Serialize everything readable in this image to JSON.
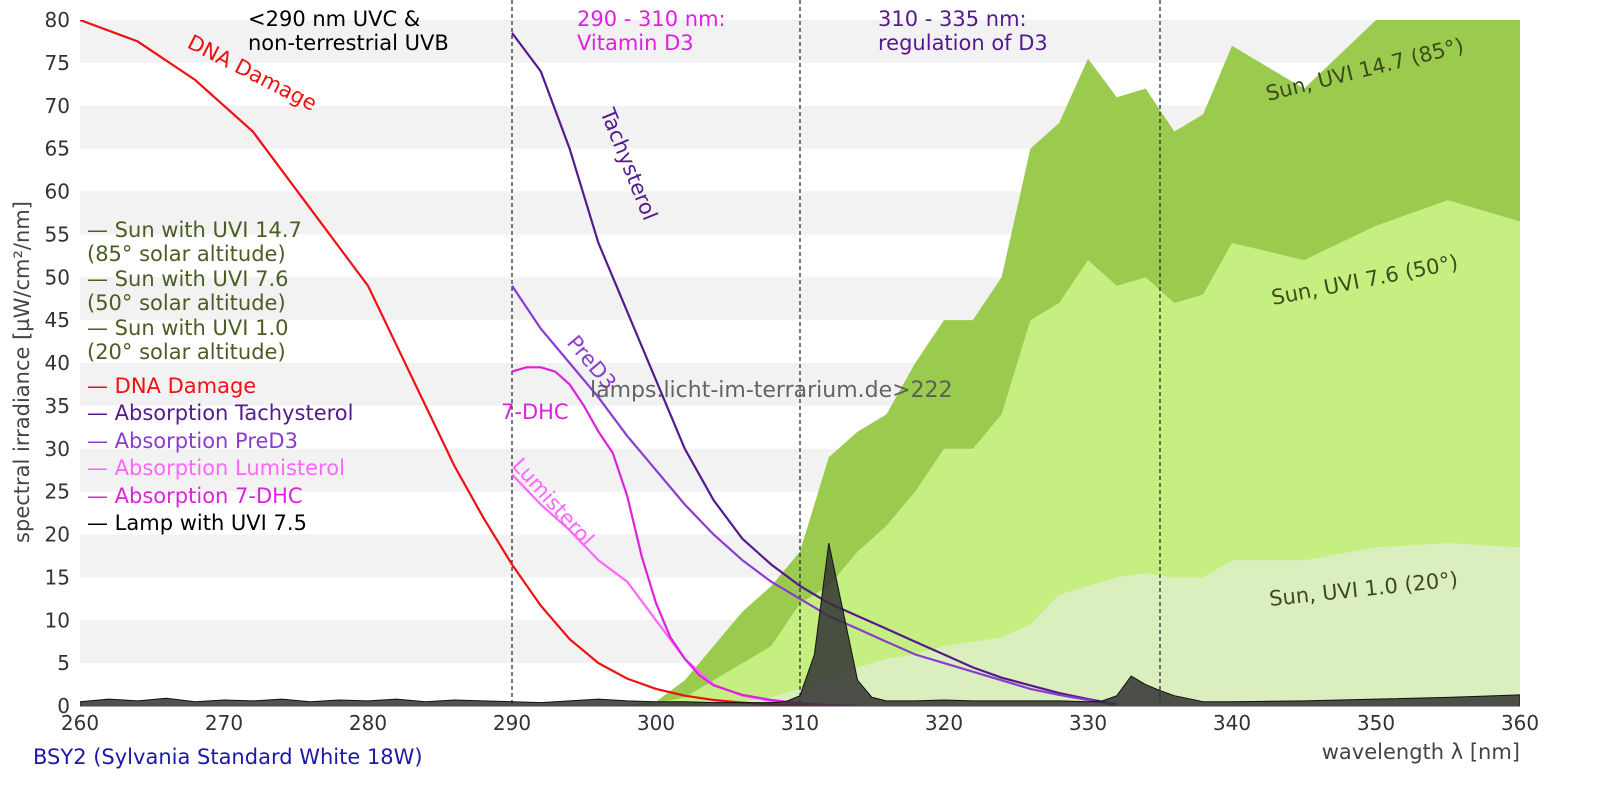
{
  "chart_data": {
    "type": "area",
    "xlabel": "wavelength λ [nm]",
    "ylabel": "spectral irradiance [µW/cm²/nm]",
    "xlim": [
      260,
      360
    ],
    "ylim": [
      0,
      80
    ],
    "x_ticks": [
      "260",
      "270",
      "280",
      "290",
      "300",
      "310",
      "320",
      "330",
      "340",
      "350",
      "360"
    ],
    "y_ticks": [
      "0",
      "5",
      "10",
      "15",
      "20",
      "25",
      "30",
      "35",
      "40",
      "45",
      "50",
      "55",
      "60",
      "65",
      "70",
      "75",
      "80"
    ],
    "grid": "horizontal bands",
    "region_lines": [
      290,
      310,
      335
    ],
    "regions": [
      {
        "lines": [
          "<290 nm UVC &",
          "non-terrestrial UVB"
        ],
        "color": "#000000"
      },
      {
        "lines": [
          "290 - 310 nm:",
          "Vitamin D3"
        ],
        "color": "#e01fe0"
      },
      {
        "lines": [
          "310 - 335 nm:",
          "regulation of D3"
        ],
        "color": "#55198f"
      }
    ],
    "legend": [
      {
        "lines": [
          "— Sun with UVI 14.7",
          "  (85° solar altitude)"
        ],
        "color": "#4b5e22"
      },
      {
        "lines": [
          "— Sun with UVI 7.6",
          "  (50° solar altitude)"
        ],
        "color": "#4b5e22"
      },
      {
        "lines": [
          "— Sun with UVI 1.0",
          "  (20° solar altitude)"
        ],
        "color": "#4b5e22"
      },
      {
        "lines": [
          "— DNA Damage"
        ],
        "color": "#ee1111"
      },
      {
        "lines": [
          "— Absorption Tachysterol"
        ],
        "color": "#55198f"
      },
      {
        "lines": [
          "— Absorption PreD3"
        ],
        "color": "#8a3ccf"
      },
      {
        "lines": [
          "— Absorption Lumisterol"
        ],
        "color": "#ff66ff"
      },
      {
        "lines": [
          "— Absorption 7-DHC"
        ],
        "color": "#dd22dd"
      },
      {
        "lines": [
          "— Lamp with UVI 7.5"
        ],
        "color": "#000000"
      }
    ],
    "series": [
      {
        "name": "Sun with UVI 14.7",
        "kind": "area",
        "color": "#9acb4f",
        "x": [
          297,
          300,
          302,
          304,
          306,
          308,
          310,
          312,
          314,
          316,
          318,
          320,
          322,
          324,
          326,
          328,
          330,
          332,
          334,
          336,
          338,
          340,
          345,
          350,
          355,
          360
        ],
        "y": [
          0,
          0.5,
          3,
          7,
          11,
          14,
          18,
          29,
          32,
          34,
          40,
          45,
          45,
          50,
          65,
          68,
          75.5,
          71,
          72,
          67,
          69,
          77,
          72,
          80,
          84,
          80
        ]
      },
      {
        "name": "Sun with UVI 7.6",
        "kind": "area",
        "color": "#c6ef81",
        "x": [
          299,
          302,
          304,
          306,
          308,
          310,
          312,
          314,
          316,
          318,
          320,
          322,
          324,
          326,
          328,
          330,
          332,
          334,
          336,
          338,
          340,
          345,
          350,
          355,
          360
        ],
        "y": [
          0,
          1,
          3,
          5,
          7,
          12,
          14,
          18,
          21,
          25,
          30,
          30,
          34,
          45,
          47,
          52,
          49,
          50,
          47,
          48,
          54,
          52,
          56,
          59,
          56.5
        ]
      },
      {
        "name": "Sun with UVI 1.0",
        "kind": "area",
        "color": "#daeebe",
        "x": [
          303,
          306,
          308,
          310,
          312,
          314,
          316,
          318,
          320,
          322,
          324,
          326,
          328,
          330,
          332,
          334,
          336,
          338,
          340,
          345,
          350,
          355,
          360
        ],
        "y": [
          0,
          0.5,
          1,
          2,
          3,
          4.5,
          5.5,
          6,
          7,
          7.5,
          8,
          9.5,
          13,
          14,
          15,
          15.5,
          15,
          15,
          17,
          17,
          18.5,
          19,
          18.5
        ]
      },
      {
        "name": "DNA Damage",
        "kind": "line",
        "color": "#ee1111",
        "x": [
          260,
          264,
          268,
          272,
          276,
          280,
          282,
          284,
          286,
          288,
          290,
          292,
          294,
          296,
          298,
          300,
          302,
          304,
          306,
          308,
          310,
          312,
          314
        ],
        "y": [
          80,
          77.5,
          73,
          67,
          58,
          49,
          42,
          35,
          28,
          22,
          16.5,
          11.7,
          7.8,
          5,
          3.2,
          2,
          1.2,
          0.7,
          0.4,
          0.2,
          0.1,
          0.05,
          0
        ]
      },
      {
        "name": "Absorption Tachysterol",
        "kind": "line",
        "color": "#55198f",
        "x": [
          290,
          292,
          294,
          296,
          298,
          300,
          302,
          304,
          306,
          308,
          310,
          312,
          314,
          316,
          318,
          320,
          322,
          324,
          326,
          328,
          330,
          332
        ],
        "y": [
          78.5,
          74,
          65,
          54,
          46,
          38,
          30,
          24,
          19.5,
          16.5,
          14,
          12,
          10.5,
          9,
          7.5,
          6,
          4.5,
          3.3,
          2.4,
          1.5,
          0.8,
          0.2
        ]
      },
      {
        "name": "Absorption PreD3",
        "kind": "line",
        "color": "#8a3ccf",
        "x": [
          290,
          292,
          294,
          296,
          298,
          300,
          302,
          304,
          306,
          308,
          310,
          312,
          314,
          316,
          318,
          320,
          322,
          324,
          326,
          328,
          330,
          332
        ],
        "y": [
          49,
          44,
          40,
          36,
          31.5,
          27.5,
          23.5,
          20,
          17,
          14.5,
          12.5,
          10.5,
          9,
          7.5,
          6,
          5,
          4,
          3,
          2,
          1.3,
          0.7,
          0.1
        ]
      },
      {
        "name": "Absorption Lumisterol",
        "kind": "line",
        "color": "#ff66ff",
        "x": [
          290,
          292,
          294,
          296,
          298,
          300,
          302,
          304,
          306,
          308,
          310,
          312
        ],
        "y": [
          27,
          23.5,
          20.5,
          17,
          14.5,
          10,
          5.5,
          2.5,
          1.2,
          0.6,
          0.3,
          0.1
        ]
      },
      {
        "name": "Absorption 7-DHC",
        "kind": "line",
        "color": "#dd22dd",
        "x": [
          290,
          291,
          292,
          293,
          294,
          295,
          296,
          297,
          298,
          299,
          300,
          301,
          302,
          303,
          304,
          306,
          308,
          310,
          312,
          314
        ],
        "y": [
          39,
          39.5,
          39.5,
          39,
          37.5,
          35,
          32,
          29.5,
          24.5,
          17.5,
          12,
          8,
          5.5,
          3.6,
          2.4,
          1.3,
          0.7,
          0.3,
          0.1,
          0
        ]
      },
      {
        "name": "Lamp with UVI 7.5",
        "kind": "area",
        "color": "#333333",
        "x": [
          260,
          262,
          264,
          266,
          268,
          270,
          272,
          274,
          276,
          278,
          280,
          282,
          284,
          286,
          288,
          290,
          292,
          294,
          296,
          298,
          300,
          302,
          304,
          306,
          308,
          309,
          310,
          311,
          312,
          313,
          314,
          315,
          316,
          318,
          320,
          322,
          324,
          326,
          328,
          330,
          331,
          332,
          333,
          334,
          335,
          336,
          338,
          340,
          345,
          350,
          355,
          360
        ],
        "y": [
          0.5,
          0.8,
          0.6,
          0.9,
          0.5,
          0.7,
          0.6,
          0.8,
          0.5,
          0.7,
          0.6,
          0.8,
          0.5,
          0.7,
          0.6,
          0.5,
          0.4,
          0.6,
          0.8,
          0.6,
          0.5,
          0.5,
          0.4,
          0.4,
          0.4,
          0.5,
          1.2,
          6,
          19,
          11,
          3,
          1,
          0.6,
          0.6,
          0.7,
          0.6,
          0.6,
          0.6,
          0.6,
          0.5,
          0.6,
          1.2,
          3.5,
          2.5,
          1.8,
          1.2,
          0.5,
          0.5,
          0.6,
          0.8,
          1,
          1.3
        ]
      }
    ],
    "curve_labels": [
      {
        "text": "DNA Damage",
        "color": "#ee1111"
      },
      {
        "text": "Tachysterol",
        "color": "#55198f"
      },
      {
        "text": "PreD3",
        "color": "#8a3ccf"
      },
      {
        "text": "7-DHC",
        "color": "#dd22dd"
      },
      {
        "text": "Lumisterol",
        "color": "#ff66ff"
      },
      {
        "text": "Sun, UVI 14.7 (85°)",
        "color": "#3c4a1c"
      },
      {
        "text": "Sun, UVI 7.6 (50°)",
        "color": "#3c4a1c"
      },
      {
        "text": "Sun, UVI 1.0 (20°)",
        "color": "#3c4a1c"
      }
    ],
    "watermark": "lamps.licht-im-terrarium.de>222"
  },
  "footer": {
    "lamp_name": "BSY2 (Sylvania Standard White 18W)"
  }
}
